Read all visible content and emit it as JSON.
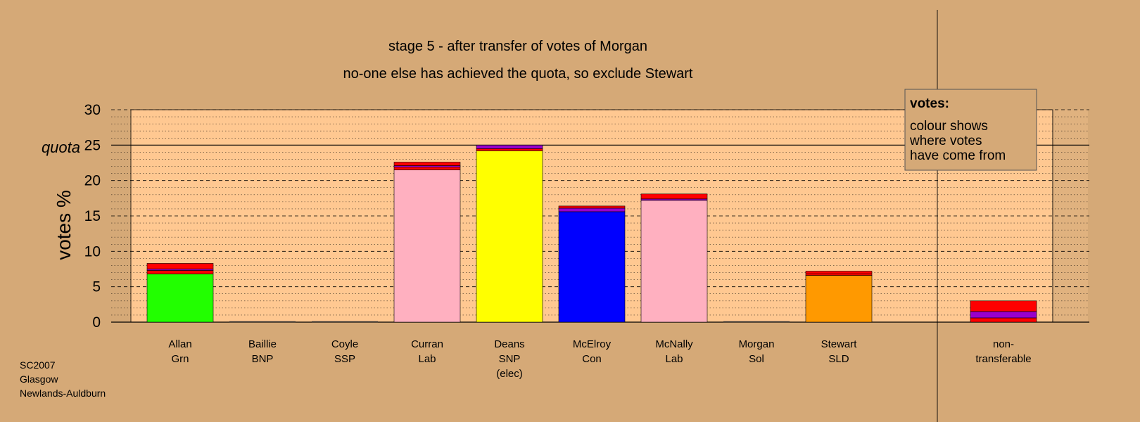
{
  "chart_data": {
    "type": "bar",
    "stacked": true,
    "title": "stage 5 - after transfer of votes of Morgan",
    "subtitle": "no-one else has achieved the quota, so exclude Stewart",
    "ylabel": "votes %",
    "ylim": [
      0,
      30
    ],
    "yticks": [
      "0",
      "5",
      "10",
      "15",
      "20",
      "25",
      "30"
    ],
    "quota": {
      "label": "quota",
      "value": 25
    },
    "grid": true,
    "legend": {
      "position": "top-right",
      "title": "votes:",
      "lines": [
        "colour shows",
        "where votes",
        "have come from"
      ]
    },
    "footnote": [
      "SC2007",
      "Glasgow",
      "Newlands-Auldburn"
    ],
    "candidates": [
      {
        "lines": [
          "Allan",
          "Grn"
        ],
        "segments": [
          {
            "value": 6.8,
            "color": "#22ff00"
          },
          {
            "value": 0.5,
            "color": "#ff0000"
          },
          {
            "value": 0.2,
            "color": "#9900cc"
          },
          {
            "value": 0.8,
            "color": "#ff0000"
          }
        ]
      },
      {
        "lines": [
          "Baillie",
          "BNP"
        ],
        "segments": [
          {
            "value": 0,
            "color": "#333399"
          }
        ]
      },
      {
        "lines": [
          "Coyle",
          "SSP"
        ],
        "segments": [
          {
            "value": 0,
            "color": "#ff0000"
          }
        ]
      },
      {
        "lines": [
          "Curran",
          "Lab"
        ],
        "segments": [
          {
            "value": 21.5,
            "color": "#ffb0c0"
          },
          {
            "value": 0.4,
            "color": "#ff0000"
          },
          {
            "value": 0.2,
            "color": "#9900cc"
          },
          {
            "value": 0.5,
            "color": "#ff0000"
          }
        ]
      },
      {
        "lines": [
          "Deans",
          "SNP",
          "(elec)"
        ],
        "segments": [
          {
            "value": 24.2,
            "color": "#ffff00"
          },
          {
            "value": 0.3,
            "color": "#ff0000"
          },
          {
            "value": 0.5,
            "color": "#9900cc"
          }
        ]
      },
      {
        "lines": [
          "McElroy",
          "Con"
        ],
        "segments": [
          {
            "value": 15.6,
            "color": "#0000ff"
          },
          {
            "value": 0.5,
            "color": "#9900cc"
          },
          {
            "value": 0.3,
            "color": "#ff0000"
          }
        ]
      },
      {
        "lines": [
          "McNally",
          "Lab"
        ],
        "segments": [
          {
            "value": 17.2,
            "color": "#ffb0c0"
          },
          {
            "value": 0.2,
            "color": "#9900cc"
          },
          {
            "value": 0.7,
            "color": "#ff0000"
          }
        ]
      },
      {
        "lines": [
          "Morgan",
          "Sol"
        ],
        "segments": [
          {
            "value": 0,
            "color": "#ff0000"
          }
        ]
      },
      {
        "lines": [
          "Stewart",
          "SLD"
        ],
        "segments": [
          {
            "value": 6.6,
            "color": "#ff9900"
          },
          {
            "value": 0.2,
            "color": "#ff0000"
          },
          {
            "value": 0.4,
            "color": "#ff0000"
          }
        ]
      },
      {
        "lines": [
          "non-",
          "transferable"
        ],
        "segments": [
          {
            "value": 0.6,
            "color": "#ff0000"
          },
          {
            "value": 0.9,
            "color": "#9900cc"
          },
          {
            "value": 1.5,
            "color": "#ff0000"
          }
        ]
      }
    ]
  }
}
